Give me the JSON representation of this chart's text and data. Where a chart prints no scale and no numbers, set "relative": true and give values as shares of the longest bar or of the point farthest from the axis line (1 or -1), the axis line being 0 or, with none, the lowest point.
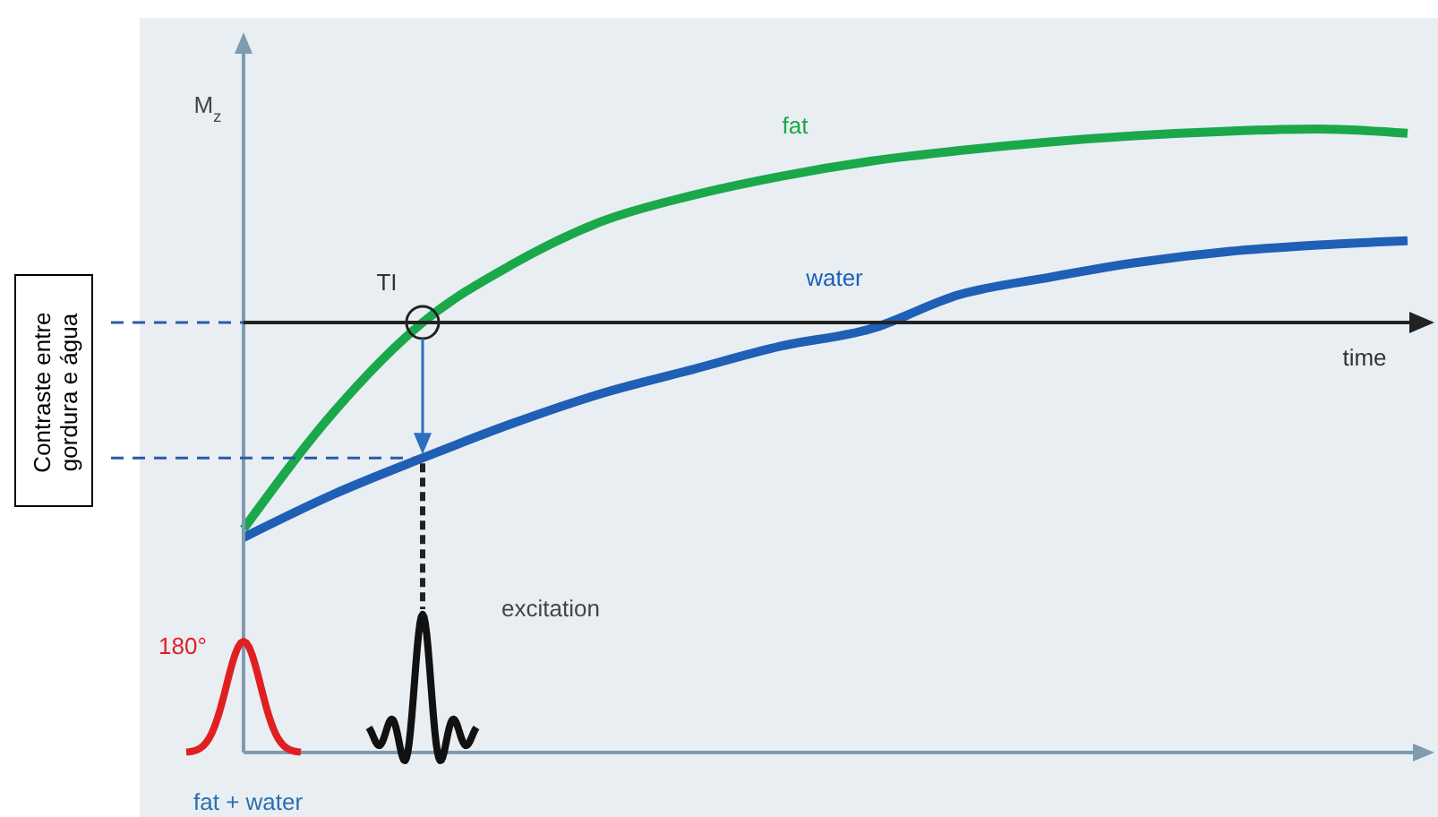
{
  "chart_data": {
    "type": "line",
    "relative": true,
    "xlabel": "time",
    "ylabel": "M$_{z}$",
    "categories": [
      null,
      null,
      null,
      null,
      null,
      null,
      null,
      null,
      null,
      null,
      null,
      null,
      null,
      null
    ],
    "series": [
      {
        "name": "fat",
        "color": "#1aa84a",
        "values": [
          -0.96,
          -0.42,
          0,
          0.27,
          0.47,
          0.59,
          0.68,
          0.75,
          0.8,
          0.84,
          0.87,
          0.89,
          0.9,
          0.88
        ]
      },
      {
        "name": "water",
        "color": "#1f5fb5",
        "values": [
          -1,
          -0.8,
          -0.63,
          -0.47,
          -0.33,
          -0.22,
          -0.11,
          -0.03,
          0.13,
          0.21,
          0.28,
          0.33,
          0.36,
          0.38
        ]
      }
    ],
    "annotations": [
      "TI",
      "excitation",
      "180°",
      "fat + water",
      "Contraste entre gordura e água"
    ],
    "marker": "none",
    "line_style": "solid"
  }
}
